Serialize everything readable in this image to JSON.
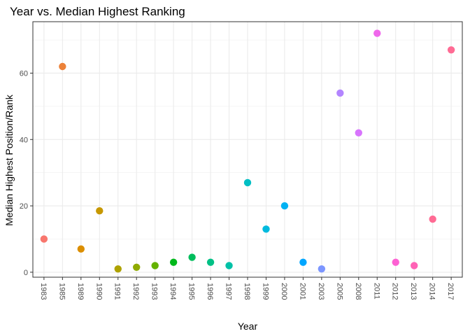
{
  "chart_data": {
    "type": "scatter",
    "title": "Year vs. Median Highest Ranking",
    "xlabel": "Year",
    "ylabel": "Median Highest Position/Rank",
    "x_type": "categorical",
    "categories": [
      "1983",
      "1985",
      "1989",
      "1990",
      "1991",
      "1992",
      "1993",
      "1994",
      "1995",
      "1996",
      "1997",
      "1998",
      "1999",
      "2000",
      "2001",
      "2003",
      "2005",
      "2008",
      "2011",
      "2012",
      "2013",
      "2014",
      "2017"
    ],
    "values": [
      10,
      62,
      7,
      18.5,
      1,
      1.5,
      2,
      3,
      4.5,
      3,
      2,
      27,
      13,
      20,
      3,
      1,
      54,
      42,
      72,
      3,
      2,
      16,
      67
    ],
    "colors": [
      "#F8766D",
      "#EC8239",
      "#DB8E00",
      "#C79800",
      "#AEA200",
      "#8FAA00",
      "#64B200",
      "#00B81B",
      "#00BD5C",
      "#00C085",
      "#00C1A7",
      "#00BFC4",
      "#00BADE",
      "#00B2F3",
      "#00A6FF",
      "#7C96FF",
      "#B385FF",
      "#D874FD",
      "#EF67EB",
      "#FD61D3",
      "#FF63B6",
      "#FF6B94",
      "#FF6B94"
    ],
    "ylim": [
      -1.5,
      75.5
    ],
    "y_ticks": [
      0,
      20,
      40,
      60
    ],
    "y_tick_labels": [
      "0",
      "20",
      "40",
      "60"
    ],
    "grid": true,
    "legend": "none"
  }
}
